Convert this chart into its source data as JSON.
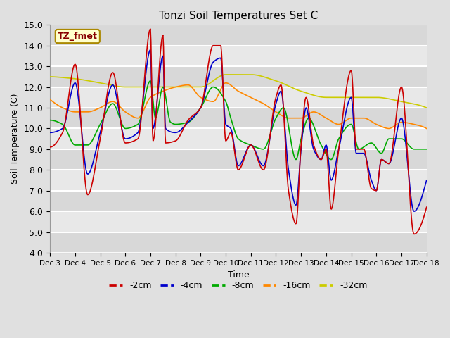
{
  "title": "Tonzi Soil Temperatures Set C",
  "xlabel": "Time",
  "ylabel": "Soil Temperature (C)",
  "ylim": [
    4.0,
    15.0
  ],
  "yticks": [
    4.0,
    5.0,
    6.0,
    7.0,
    8.0,
    9.0,
    10.0,
    11.0,
    12.0,
    13.0,
    14.0,
    15.0
  ],
  "xtick_labels": [
    "Dec 3",
    "Dec 4",
    "Dec 5",
    "Dec 6",
    "Dec 7",
    "Dec 8",
    "Dec 9",
    "Dec 10",
    "Dec 11",
    "Dec 12",
    "Dec 13",
    "Dec 14",
    "Dec 15",
    "Dec 16",
    "Dec 17",
    "Dec 18"
  ],
  "legend_label": "TZ_fmet",
  "series_labels": [
    "-2cm",
    "-4cm",
    "-8cm",
    "-16cm",
    "-32cm"
  ],
  "series_colors": [
    "#cc0000",
    "#0000cc",
    "#00aa00",
    "#ff8800",
    "#cccc00"
  ],
  "background_color": "#e0e0e0",
  "plot_bg_color": "#e8e8e8",
  "n_points": 721,
  "days": 15
}
